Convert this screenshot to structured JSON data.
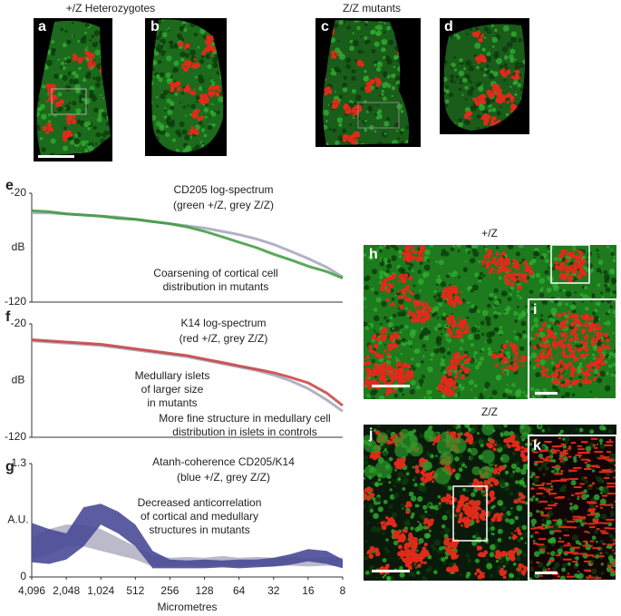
{
  "group_titles": [
    "+/Z Heterozygotes",
    "Z/Z mutants"
  ],
  "image_titles": [
    "+/Z",
    "Z/Z"
  ],
  "panel_labels": [
    "a",
    "b",
    "c",
    "d",
    "e",
    "f",
    "g",
    "h",
    "i",
    "j",
    "k"
  ],
  "chart_data": [
    {
      "type": "line",
      "title": "CD205 log-spectrum",
      "subtitle": "(green +/Z, grey Z/Z)",
      "ylabel": "dB",
      "annotations": [
        [
          "Coarsening of cortical cell",
          "distribution in mutants"
        ]
      ],
      "log_x": true,
      "xlim": [
        4096,
        8
      ],
      "ylim": [
        -120,
        -20
      ],
      "yticks": [
        -120,
        -20
      ],
      "x": [
        4096,
        2896,
        2048,
        1448,
        1024,
        724,
        512,
        362,
        256,
        181,
        128,
        90,
        64,
        45,
        32,
        23,
        16,
        11,
        8
      ],
      "series": [
        {
          "name": "+/Z",
          "color": "#3c9a3c",
          "values": [
            -36,
            -37,
            -39,
            -40,
            -41,
            -43,
            -44,
            -46,
            -48,
            -51,
            -55,
            -60,
            -65,
            -70,
            -76,
            -81,
            -87,
            -92,
            -98
          ]
        },
        {
          "name": "Z/Z",
          "color": "#a4a4bc",
          "values": [
            -38,
            -38,
            -39,
            -40,
            -41,
            -42,
            -44,
            -46,
            -48,
            -50,
            -52,
            -55,
            -58,
            -62,
            -67,
            -73,
            -80,
            -88,
            -97
          ]
        }
      ]
    },
    {
      "type": "line",
      "title": "K14 log-spectrum",
      "subtitle": "(red +/Z, grey Z/Z)",
      "ylabel": "dB",
      "annotations": [
        [
          "Medullary islets",
          "of larger size",
          "in mutants"
        ],
        [
          "More fine structure in medullary cell",
          "distribution in islets in controls"
        ]
      ],
      "log_x": true,
      "xlim": [
        4096,
        8
      ],
      "ylim": [
        -120,
        -20
      ],
      "yticks": [
        -120,
        -20
      ],
      "x": [
        4096,
        2896,
        2048,
        1448,
        1024,
        724,
        512,
        362,
        256,
        181,
        128,
        90,
        64,
        45,
        32,
        23,
        16,
        11,
        8
      ],
      "series": [
        {
          "name": "+/Z",
          "color": "#c84040",
          "values": [
            -34,
            -35,
            -36,
            -37,
            -38,
            -40,
            -42,
            -44,
            -46,
            -48,
            -51,
            -54,
            -57,
            -60,
            -63,
            -67,
            -72,
            -81,
            -92
          ]
        },
        {
          "name": "Z/Z",
          "color": "#a4a4bc",
          "values": [
            -35,
            -36,
            -37,
            -38,
            -39,
            -41,
            -43,
            -45,
            -47,
            -49,
            -52,
            -55,
            -58,
            -61,
            -65,
            -70,
            -77,
            -87,
            -97
          ]
        }
      ]
    },
    {
      "type": "band",
      "title": "Atanh-coherence CD205/K14",
      "subtitle": "(blue +/Z, grey Z/Z)",
      "ylabel": "A.U.",
      "xlabel": "Micrometres",
      "annotations": [
        [
          "Decreased anticorrelation",
          "of cortical and medullary",
          "structures in mutants"
        ]
      ],
      "log_x": true,
      "xlim": [
        4096,
        8
      ],
      "ylim": [
        0,
        1.3
      ],
      "yticks": [
        0,
        1.3
      ],
      "xticks": [
        {
          "value": 4096,
          "label": "4,096"
        },
        {
          "value": 2048,
          "label": "2,048"
        },
        {
          "value": 1024,
          "label": "1,024"
        },
        512,
        256,
        128,
        64,
        32,
        16,
        8
      ],
      "x": [
        4096,
        2896,
        2048,
        1448,
        1024,
        724,
        512,
        362,
        256,
        181,
        128,
        90,
        64,
        45,
        32,
        23,
        16,
        11,
        8
      ],
      "series": [
        {
          "name": "+/Z",
          "color": "#4a4a96",
          "lower": [
            0.17,
            0.15,
            0.2,
            0.35,
            0.6,
            0.5,
            0.35,
            0.1,
            0.1,
            0.1,
            0.1,
            0.11,
            0.1,
            0.11,
            0.12,
            0.14,
            0.18,
            0.15,
            0.1
          ],
          "upper": [
            0.62,
            0.55,
            0.5,
            0.8,
            0.84,
            0.75,
            0.6,
            0.3,
            0.2,
            0.19,
            0.2,
            0.19,
            0.2,
            0.2,
            0.22,
            0.26,
            0.32,
            0.3,
            0.2
          ]
        },
        {
          "name": "Z/Z",
          "color": "#b2b2c4",
          "lower": [
            0.2,
            0.25,
            0.35,
            0.35,
            0.3,
            0.25,
            0.2,
            0.12,
            0.12,
            0.13,
            0.12,
            0.13,
            0.12,
            0.13,
            0.12,
            0.13,
            0.12,
            0.13,
            0.12
          ],
          "upper": [
            0.45,
            0.55,
            0.6,
            0.6,
            0.55,
            0.45,
            0.35,
            0.25,
            0.22,
            0.23,
            0.22,
            0.24,
            0.22,
            0.23,
            0.22,
            0.23,
            0.22,
            0.23,
            0.22
          ]
        }
      ]
    }
  ]
}
